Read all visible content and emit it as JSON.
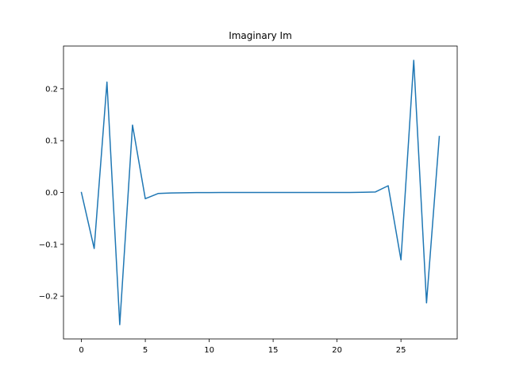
{
  "chart_data": {
    "type": "line",
    "title": "Imaginary Im",
    "xlabel": "",
    "ylabel": "",
    "xlim": [
      -1.4,
      29.4
    ],
    "ylim": [
      -0.2825,
      0.2825
    ],
    "x_ticks": [
      0,
      5,
      10,
      15,
      20,
      25
    ],
    "y_ticks": [
      -0.2,
      -0.1,
      0.0,
      0.1,
      0.2
    ],
    "x_tick_labels": [
      "0",
      "5",
      "10",
      "15",
      "20",
      "25"
    ],
    "y_tick_labels": [
      "−0.2",
      "−0.1",
      "0.0",
      "0.1",
      "0.2"
    ],
    "grid": false,
    "line_color": "#1f77b4",
    "series": [
      {
        "x": [
          0,
          1,
          2,
          3,
          4,
          5,
          6,
          7,
          8,
          9,
          10,
          11,
          12,
          13,
          14,
          15,
          16,
          17,
          18,
          19,
          20,
          21,
          22,
          23,
          24,
          25,
          26,
          27,
          28
        ],
        "values": [
          0.0,
          -0.108,
          0.213,
          -0.255,
          0.13,
          -0.012,
          -0.002,
          -0.001,
          -0.0005,
          -0.0002,
          -0.0001,
          0.0,
          0.0,
          0.0,
          0.0,
          0.0,
          0.0,
          0.0,
          0.0,
          0.0,
          0.0,
          0.0,
          0.0003,
          0.001,
          0.013,
          -0.13,
          0.255,
          -0.213,
          0.108
        ]
      }
    ]
  }
}
